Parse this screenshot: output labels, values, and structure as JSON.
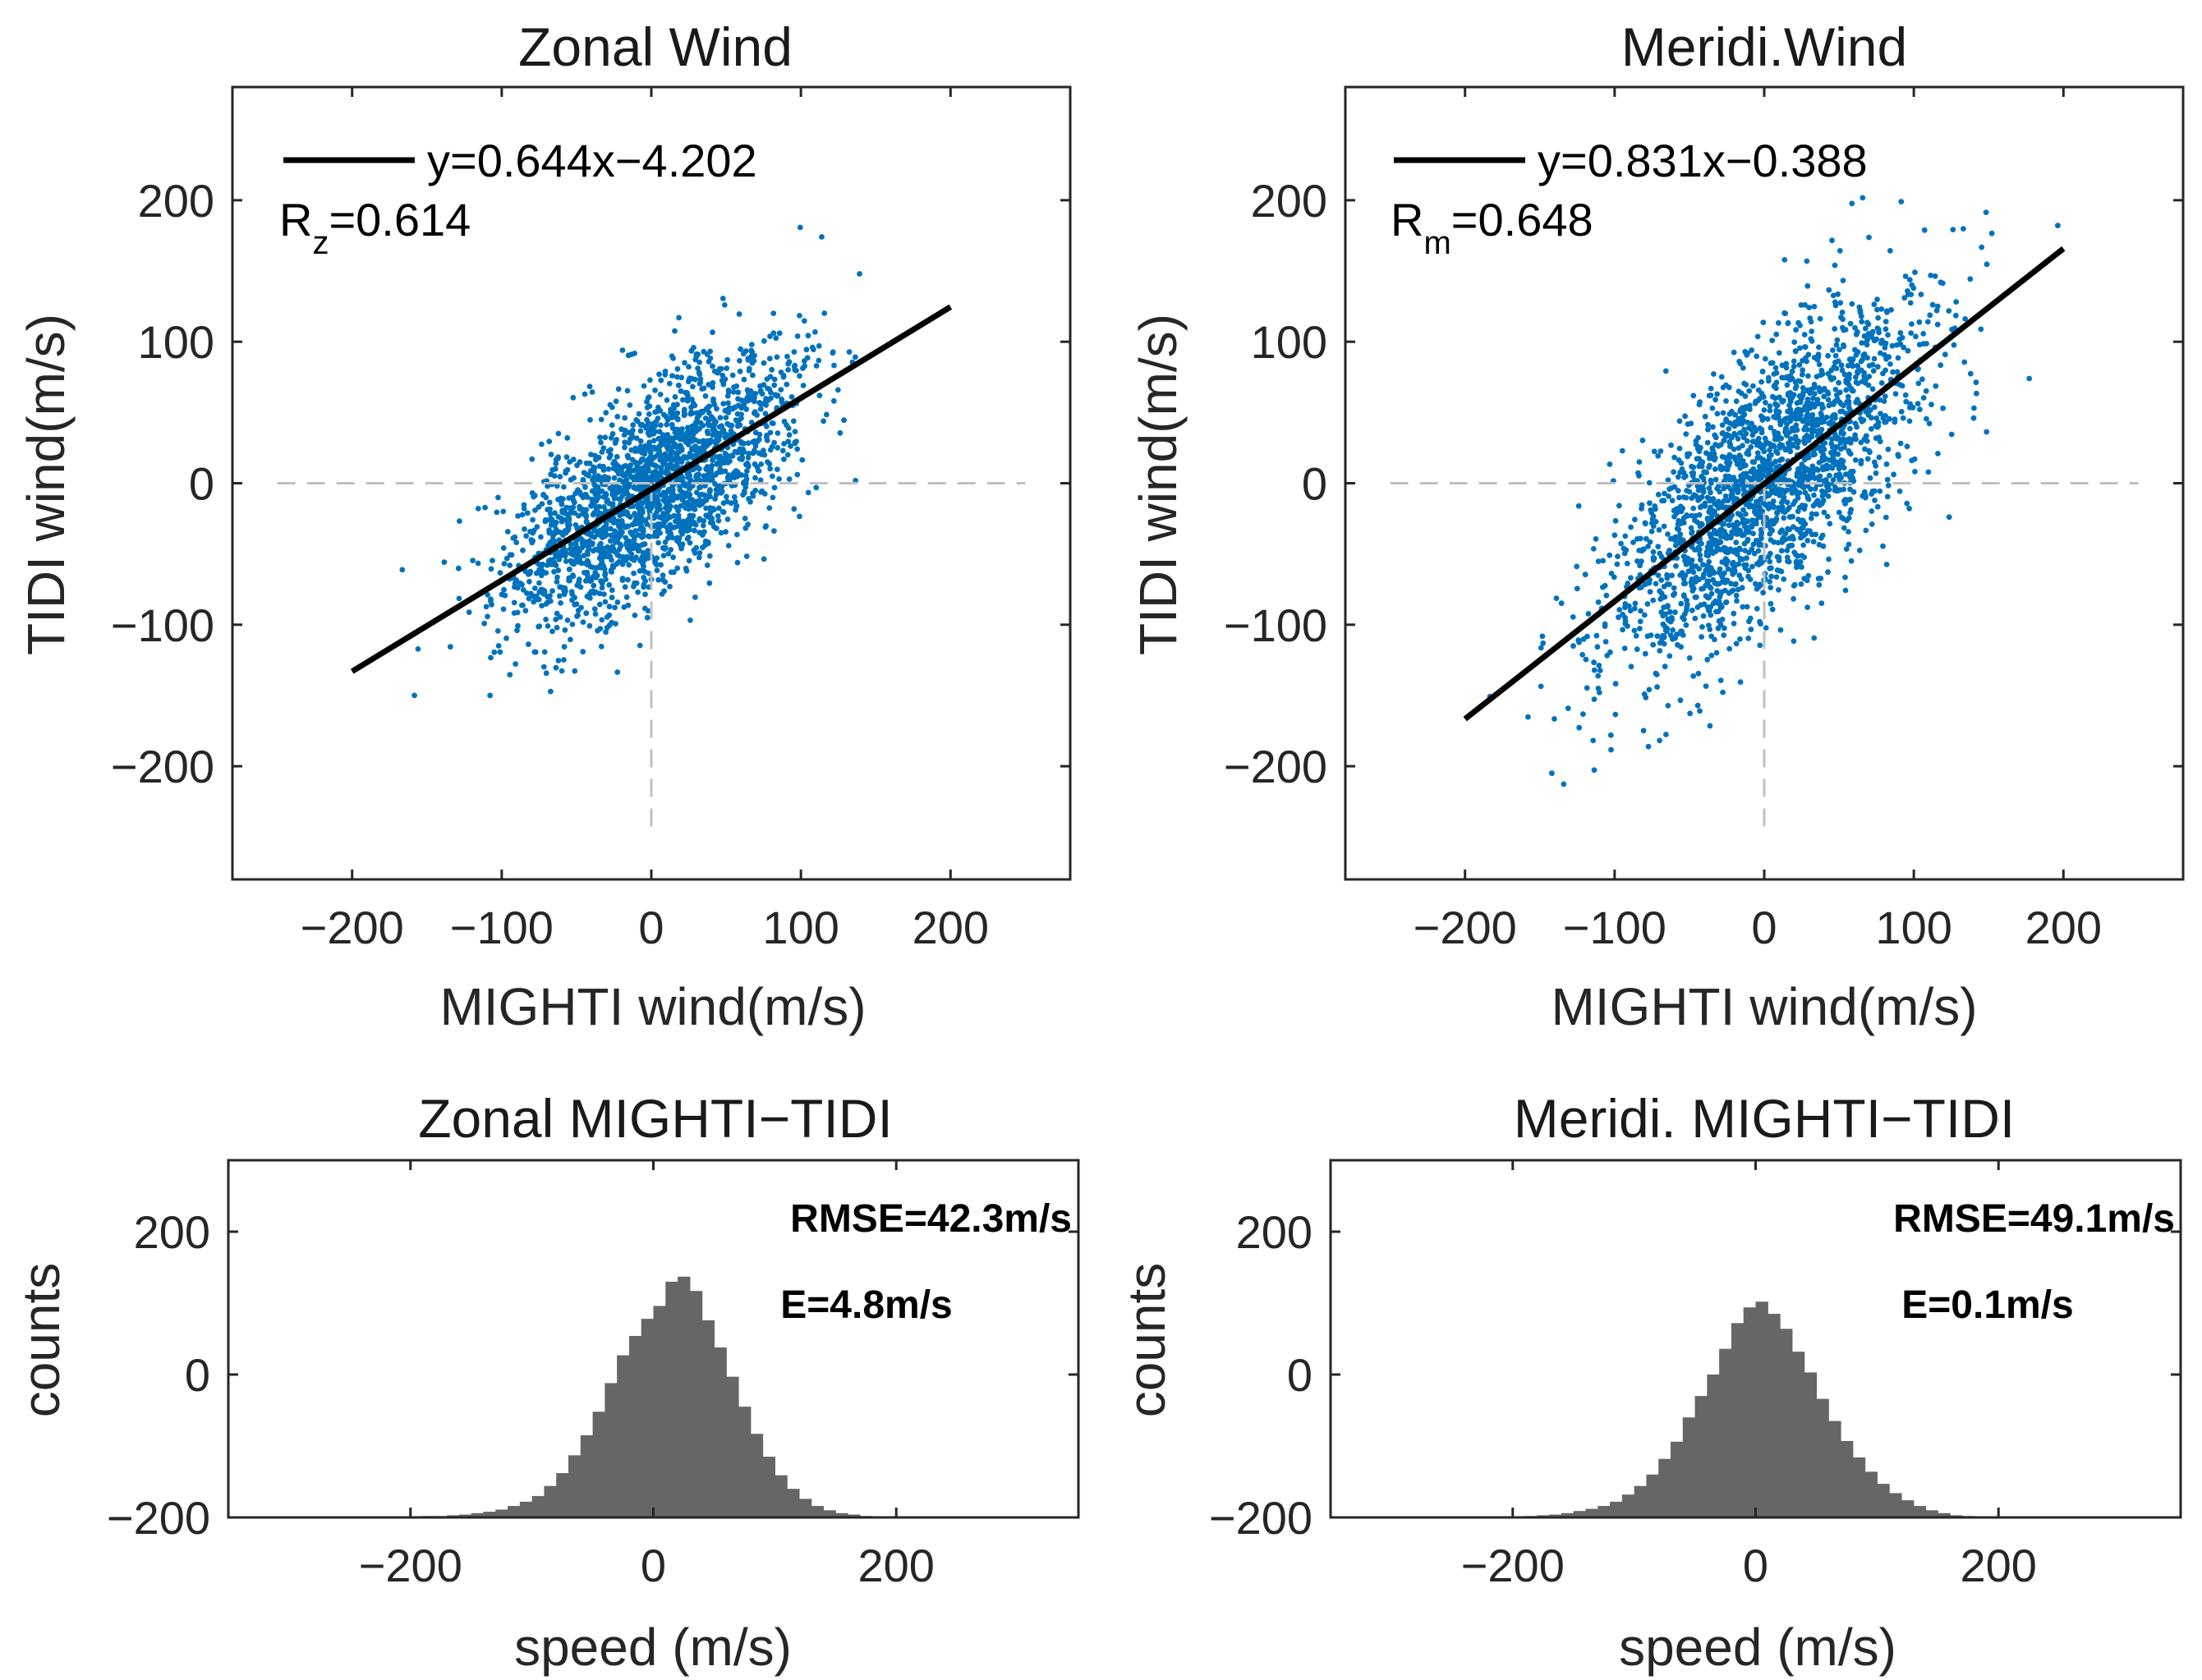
{
  "colors": {
    "scatter": "#0072BD",
    "fit_line": "#000000",
    "histogram": "#666666",
    "zero_line": "#c0c0c0",
    "axis": "#262626"
  },
  "chart_data": [
    {
      "id": "zonal-scatter",
      "type": "scatter",
      "title": "Zonal Wind",
      "xlabel": "MIGHTI wind(m/s)",
      "ylabel": "TIDI wind(m/s)",
      "xlim": [
        -280,
        280
      ],
      "ylim": [
        -280,
        280
      ],
      "xticks": [
        -200,
        -100,
        0,
        100,
        200
      ],
      "yticks": [
        -200,
        -100,
        0,
        100,
        200
      ],
      "xtick_labels": [
        "−200",
        "−100",
        "0",
        "100",
        "200"
      ],
      "ytick_labels": [
        "−200",
        "−100",
        "0",
        "100",
        "200"
      ],
      "fit": {
        "slope": 0.644,
        "intercept": -4.202,
        "x_range": [
          -200,
          200
        ]
      },
      "legend_label": "y=0.644x−4.202",
      "r_label_main": "R",
      "r_label_sub": "z",
      "r_label_value": "=0.614",
      "correlation": 0.614,
      "point_cloud": {
        "n_points": 2200,
        "x_std": 48,
        "residual_std": 35,
        "seed": 11
      }
    },
    {
      "id": "meridional-scatter",
      "type": "scatter",
      "title": "Meridi.Wind",
      "xlabel": "MIGHTI wind(m/s)",
      "ylabel": "TIDI wind(m/s)",
      "xlim": [
        -280,
        280
      ],
      "ylim": [
        -280,
        280
      ],
      "xticks": [
        -200,
        -100,
        0,
        100,
        200
      ],
      "yticks": [
        -200,
        -100,
        0,
        100,
        200
      ],
      "xtick_labels": [
        "−200",
        "−100",
        "0",
        "100",
        "200"
      ],
      "ytick_labels": [
        "−200",
        "−100",
        "0",
        "100",
        "200"
      ],
      "fit": {
        "slope": 0.831,
        "intercept": -0.388,
        "x_range": [
          -200,
          200
        ]
      },
      "legend_label": "y=0.831x−0.388",
      "r_label_main": "R",
      "r_label_sub": "m",
      "r_label_value": "=0.648",
      "correlation": 0.648,
      "point_cloud": {
        "n_points": 2200,
        "x_std": 52,
        "residual_std": 45,
        "seed": 23
      }
    },
    {
      "id": "zonal-hist",
      "type": "bar",
      "title": "Zonal MIGHTI−TIDI",
      "xlabel": "speed (m/s)",
      "ylabel": "counts",
      "xlim": [
        -350,
        350
      ],
      "ylim": [
        -200,
        300
      ],
      "xticks": [
        -200,
        0,
        200
      ],
      "yticks": [
        -200,
        0,
        200
      ],
      "xtick_labels": [
        "−200",
        "0",
        "200"
      ],
      "ytick_labels": [
        "−200",
        "0",
        "200"
      ],
      "bin_width": 10,
      "bin_centers": [
        -205,
        -195,
        -185,
        -175,
        -165,
        -155,
        -145,
        -135,
        -125,
        -115,
        -105,
        -95,
        -85,
        -75,
        -65,
        -55,
        -45,
        -35,
        -25,
        -15,
        -5,
        5,
        15,
        25,
        35,
        45,
        55,
        65,
        75,
        85,
        95,
        105,
        115,
        125,
        135,
        145,
        155,
        165,
        175,
        185,
        195,
        205,
        215
      ],
      "counts": [
        -200,
        -199,
        -198,
        -198,
        -197,
        -196,
        -194,
        -192,
        -189,
        -184,
        -178,
        -170,
        -156,
        -138,
        -113,
        -85,
        -52,
        -12,
        27,
        54,
        78,
        96,
        130,
        137,
        117,
        76,
        38,
        -3,
        -45,
        -83,
        -115,
        -141,
        -160,
        -174,
        -184,
        -190,
        -194,
        -196,
        -198,
        -199,
        -199,
        -200,
        -200
      ],
      "rmse_label": "RMSE=42.3m/s",
      "bias_label": "E=4.8m/s"
    },
    {
      "id": "meridional-hist",
      "type": "bar",
      "title": "Meridi. MIGHTI−TIDI",
      "xlabel": "speed (m/s)",
      "ylabel": "counts",
      "xlim": [
        -350,
        350
      ],
      "ylim": [
        -200,
        300
      ],
      "xticks": [
        -200,
        0,
        200
      ],
      "yticks": [
        -200,
        0,
        200
      ],
      "xtick_labels": [
        "−200",
        "0",
        "200"
      ],
      "ytick_labels": [
        "−200",
        "0",
        "200"
      ],
      "bin_width": 10,
      "bin_centers": [
        -205,
        -195,
        -185,
        -175,
        -165,
        -155,
        -145,
        -135,
        -125,
        -115,
        -105,
        -95,
        -85,
        -75,
        -65,
        -55,
        -45,
        -35,
        -25,
        -15,
        -5,
        5,
        15,
        25,
        35,
        45,
        55,
        65,
        75,
        85,
        95,
        105,
        115,
        125,
        135,
        145,
        155,
        165,
        175,
        185,
        195,
        205,
        215
      ],
      "counts": [
        -200,
        -199,
        -198,
        -197,
        -196,
        -194,
        -191,
        -188,
        -184,
        -178,
        -168,
        -156,
        -140,
        -118,
        -94,
        -60,
        -30,
        0,
        36,
        72,
        94,
        102,
        85,
        64,
        32,
        3,
        -34,
        -65,
        -93,
        -116,
        -136,
        -153,
        -166,
        -176,
        -184,
        -190,
        -194,
        -197,
        -198,
        -199,
        -199,
        -200,
        -200
      ],
      "rmse_label": "RMSE=49.1m/s",
      "bias_label": "E=0.1m/s"
    }
  ]
}
